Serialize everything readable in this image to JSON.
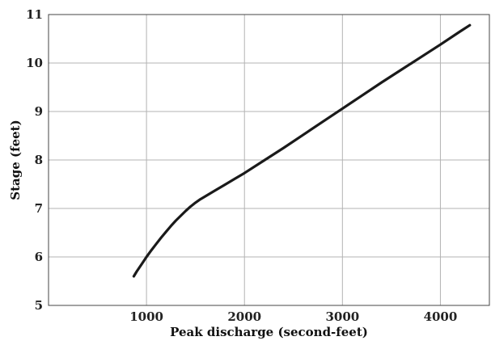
{
  "chart_data": {
    "type": "line",
    "title": "",
    "xlabel": "Peak discharge (second-feet)",
    "ylabel": "Stage (feet)",
    "xlim": [
      0,
      4500
    ],
    "ylim": [
      5,
      11
    ],
    "xticks": [
      1000,
      2000,
      3000,
      4000
    ],
    "yticks": [
      5,
      6,
      7,
      8,
      9,
      10,
      11
    ],
    "grid": true,
    "series": [
      {
        "color": "#1a1a1a",
        "x": [
          870,
          900,
          950,
          1000,
          1050,
          1100,
          1150,
          1200,
          1250,
          1300,
          1350,
          1400,
          1450,
          1500,
          1550,
          1600,
          1700,
          1800,
          1900,
          2000,
          2200,
          2400,
          2600,
          2800,
          3000,
          3200,
          3400,
          3600,
          3800,
          4000,
          4200,
          4300
        ],
        "y": [
          5.6,
          5.7,
          5.85,
          6.0,
          6.14,
          6.27,
          6.4,
          6.52,
          6.64,
          6.75,
          6.85,
          6.95,
          7.04,
          7.12,
          7.19,
          7.25,
          7.37,
          7.49,
          7.61,
          7.73,
          7.99,
          8.25,
          8.52,
          8.79,
          9.06,
          9.33,
          9.6,
          9.86,
          10.12,
          10.38,
          10.65,
          10.78
        ]
      }
    ]
  }
}
